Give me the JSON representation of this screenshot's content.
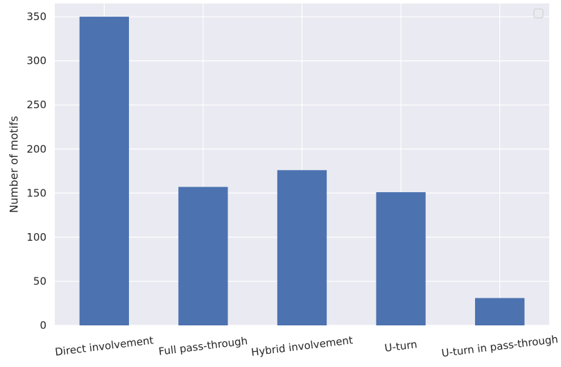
{
  "chart_data": {
    "type": "bar",
    "title": "",
    "xlabel": "",
    "ylabel": "Number of motifs",
    "categories": [
      "Direct involvement",
      "Full pass-through",
      "Hybrid involvement",
      "U-turn",
      "U-turn in pass-through"
    ],
    "values": [
      350,
      157,
      176,
      151,
      31
    ],
    "ylim": [
      0,
      365
    ],
    "yticks": [
      0,
      50,
      100,
      150,
      200,
      250,
      300,
      350
    ],
    "grid": true,
    "legend": {
      "placement": "top-right",
      "entries": []
    },
    "colors": {
      "bar": "#4C72B0",
      "background": "#EAEAF2",
      "grid": "#FFFFFF",
      "text": "#262626"
    }
  }
}
